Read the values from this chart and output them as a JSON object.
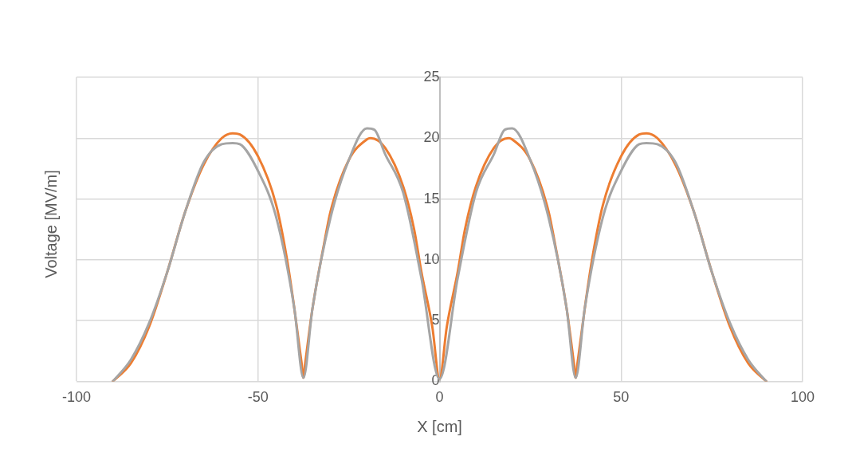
{
  "chart_data": {
    "type": "line",
    "xlabel": "X [cm]",
    "ylabel": "Voltage [MV/m]",
    "xlim": [
      -100,
      100
    ],
    "xticks": [
      -100,
      -50,
      0,
      50,
      100
    ],
    "ylim": [
      0,
      25
    ],
    "yticks": [
      0,
      5,
      10,
      15,
      20,
      25
    ],
    "grid": true,
    "marker": "none",
    "line_style": "solid",
    "series": [
      {
        "color": "#a5a5a5",
        "x": [
          -90,
          -85,
          -80,
          -75,
          -70,
          -65,
          -60,
          -57,
          -55,
          -50,
          -45,
          -40,
          -37.5,
          -35,
          -30,
          -25,
          -20,
          -18,
          -15,
          -10,
          -5,
          0,
          5,
          10,
          15,
          18,
          20,
          25,
          30,
          35,
          37.5,
          40,
          45,
          50,
          55,
          57,
          60,
          65,
          70,
          75,
          80,
          85,
          90
        ],
        "values": [
          0,
          1.8,
          4.8,
          9,
          14,
          18,
          19.5,
          19.6,
          19.5,
          17.3,
          13.5,
          6,
          0.3,
          6,
          13.5,
          18.2,
          20.8,
          20.7,
          18.7,
          15.5,
          8.5,
          0.2,
          8.5,
          15.5,
          18.7,
          20.7,
          20.8,
          18.2,
          13.5,
          6,
          0.3,
          6,
          13.5,
          17.3,
          19.5,
          19.6,
          19.5,
          18,
          14,
          9,
          4.8,
          1.8,
          0
        ]
      },
      {
        "color": "#ed7d31",
        "x": [
          -90,
          -85,
          -80,
          -75,
          -70,
          -65,
          -60,
          -57,
          -55,
          -50,
          -45,
          -42,
          -40,
          -38,
          -37.5,
          -37,
          -35,
          -32,
          -30,
          -25,
          -20,
          -19,
          -15,
          -10,
          -7,
          -5,
          -2,
          0,
          2,
          5,
          7,
          10,
          15,
          19,
          20,
          25,
          30,
          32,
          35,
          37,
          37.5,
          38,
          40,
          42,
          45,
          50,
          55,
          57,
          60,
          65,
          70,
          75,
          80,
          85,
          90
        ],
        "values": [
          0,
          1.5,
          4.5,
          9,
          14,
          17.8,
          20,
          20.4,
          20.3,
          18.5,
          14.5,
          10,
          6,
          1.5,
          0.3,
          1.5,
          6,
          11,
          14,
          18.2,
          19.9,
          20,
          19.2,
          16,
          12.5,
          9,
          4.5,
          0.2,
          4.5,
          9,
          12.5,
          16,
          19.2,
          20,
          19.9,
          18.2,
          14,
          11,
          6,
          1.5,
          0.3,
          1.5,
          6,
          10,
          14.5,
          18.5,
          20.3,
          20.4,
          20,
          17.8,
          14,
          9,
          4.5,
          1.5,
          0
        ]
      }
    ]
  }
}
